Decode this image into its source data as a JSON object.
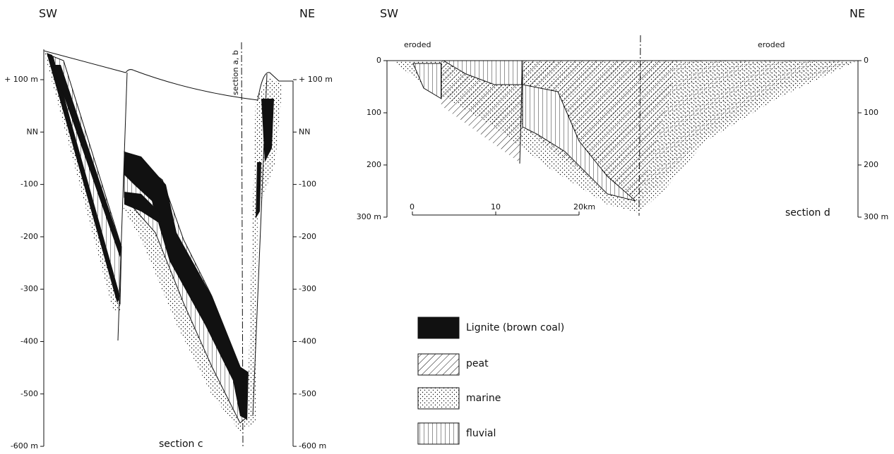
{
  "section_c": {
    "sw": "SW",
    "ne": "NE",
    "marker": "section a, b",
    "label": "section c",
    "left_axis": [
      "+ 100 m",
      "NN",
      "-100",
      "-200",
      "-300",
      "-400",
      "-500",
      "-600 m"
    ],
    "right_axis": [
      "+ 100 m",
      "NN",
      "-100",
      "-200",
      "-300",
      "-400",
      "-500",
      "-600 m"
    ]
  },
  "section_d": {
    "sw": "SW",
    "ne": "NE",
    "eroded": [
      "eroded",
      "eroded"
    ],
    "label": "section d",
    "left_axis": [
      "0",
      "100",
      "200",
      "300 m"
    ],
    "right_axis": [
      "0",
      "100",
      "200",
      "300 m"
    ],
    "scale": [
      "0",
      "10",
      "20km"
    ]
  },
  "legend": [
    {
      "label": "Lignite (brown coal)"
    },
    {
      "label": "peat"
    },
    {
      "label": "marine"
    },
    {
      "label": "fluvial"
    }
  ]
}
